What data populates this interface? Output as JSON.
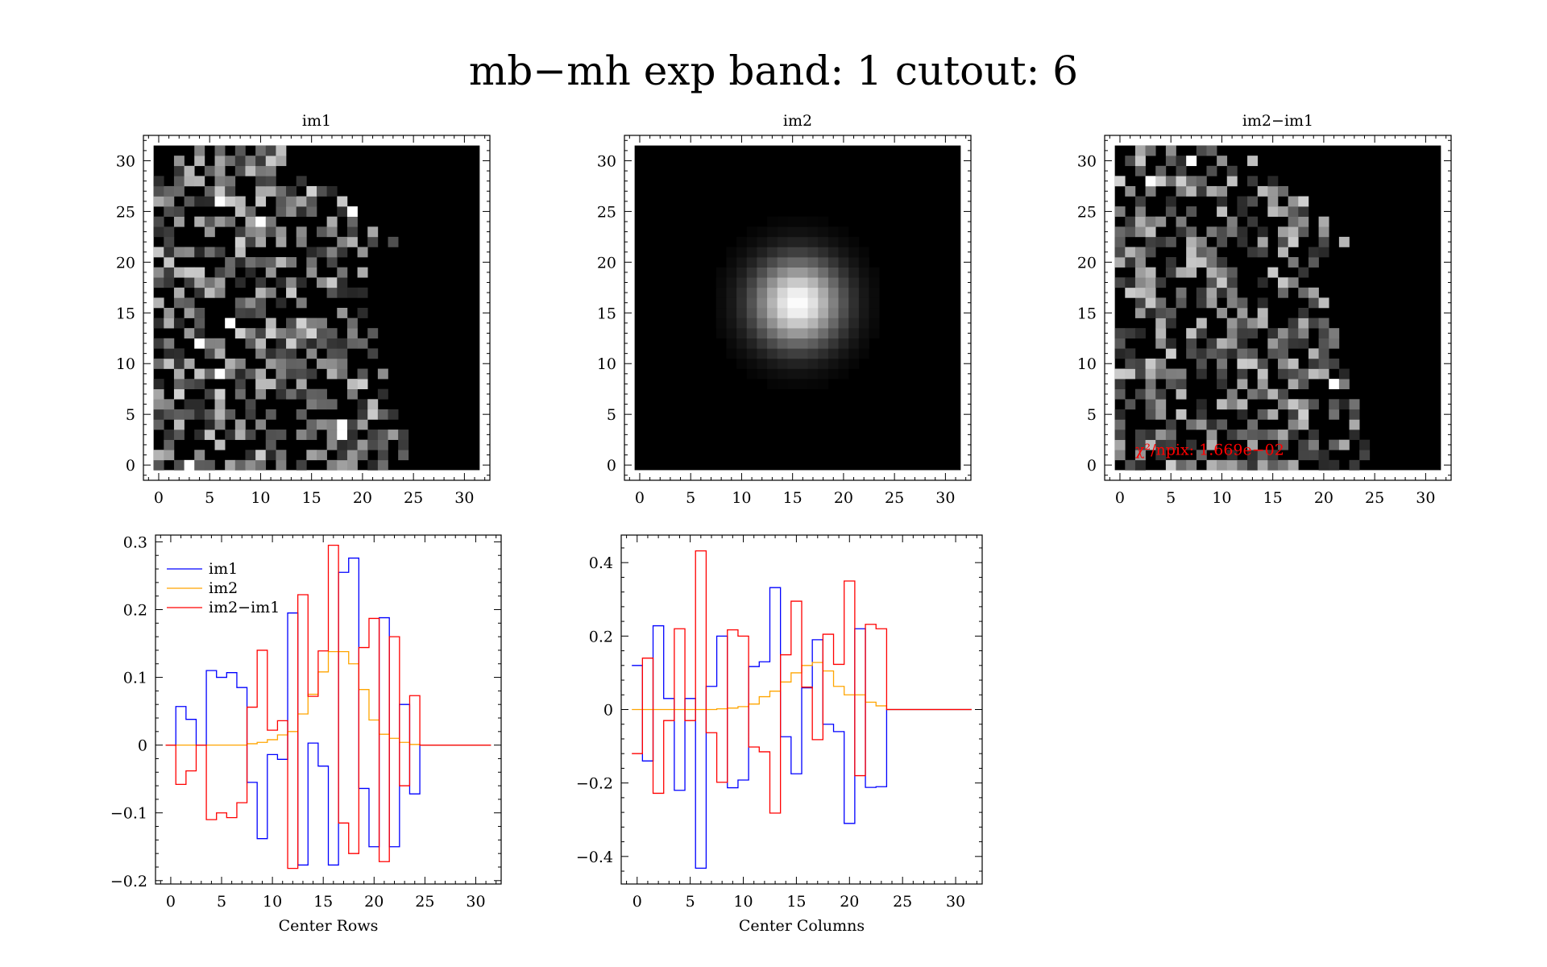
{
  "figure": {
    "title": "mb−mh exp band: 1 cutout: 6"
  },
  "chart_data": [
    {
      "type": "heatmap",
      "title": "im1",
      "xlim": [
        -1.5,
        32.5
      ],
      "ylim": [
        -1.5,
        32.5
      ],
      "xticks": [
        0,
        5,
        10,
        15,
        20,
        25,
        30
      ],
      "yticks": [
        0,
        5,
        10,
        15,
        20,
        25,
        30
      ],
      "grid_size": 32,
      "colormap": "grayscale",
      "note_content": "noisy pixels filling the lower-left region, zero elsewhere"
    },
    {
      "type": "heatmap",
      "title": "im2",
      "xlim": [
        -1.5,
        32.5
      ],
      "ylim": [
        -1.5,
        32.5
      ],
      "xticks": [
        0,
        5,
        10,
        15,
        20,
        25,
        30
      ],
      "yticks": [
        0,
        5,
        10,
        15,
        20,
        25,
        30
      ],
      "grid_size": 32,
      "colormap": "grayscale",
      "gaussian": {
        "center_x": 15.5,
        "center_y": 16,
        "sigma": 3
      }
    },
    {
      "type": "heatmap",
      "title": "im2−im1",
      "xlim": [
        -1.5,
        32.5
      ],
      "ylim": [
        -1.5,
        32.5
      ],
      "xticks": [
        0,
        5,
        10,
        15,
        20,
        25,
        30
      ],
      "yticks": [
        0,
        5,
        10,
        15,
        20,
        25,
        30
      ],
      "grid_size": 32,
      "colormap": "grayscale",
      "annotation": {
        "text": "χ²/npix: 1.669e−02",
        "color": "#ff0000",
        "x": 1.5,
        "y": 1
      }
    },
    {
      "type": "line",
      "step": true,
      "xlabel": "Center Rows",
      "xlim": [
        -1.5,
        32.5
      ],
      "ylim": [
        -0.205,
        0.31
      ],
      "xticks": [
        0,
        5,
        10,
        15,
        20,
        25,
        30
      ],
      "yticks": [
        -0.2,
        -0.1,
        0,
        0.1,
        0.2,
        0.3
      ],
      "ytick_labels": [
        "−0.2",
        "−0.1",
        "0",
        "0.1",
        "0.2",
        "0.3"
      ],
      "legend": "top-left",
      "x": [
        0,
        1,
        2,
        3,
        4,
        5,
        6,
        7,
        8,
        9,
        10,
        11,
        12,
        13,
        14,
        15,
        16,
        17,
        18,
        19,
        20,
        21,
        22,
        23,
        24,
        25,
        26,
        27,
        28,
        29,
        30,
        31
      ],
      "series": [
        {
          "name": "im1",
          "color": "#0000ff",
          "values": [
            0.0,
            0.057,
            0.038,
            0.0,
            0.11,
            0.1,
            0.107,
            0.085,
            -0.055,
            -0.138,
            -0.014,
            -0.021,
            0.195,
            -0.177,
            0.003,
            -0.031,
            -0.177,
            0.255,
            0.276,
            -0.064,
            -0.15,
            0.188,
            -0.15,
            0.06,
            -0.072,
            0,
            0,
            0,
            0,
            0,
            0,
            0
          ]
        },
        {
          "name": "im2",
          "color": "#ffa500",
          "values": [
            0,
            0,
            0,
            0,
            0,
            0,
            0,
            0,
            0.002,
            0.004,
            0.008,
            0.015,
            0.02,
            0.046,
            0.075,
            0.108,
            0.138,
            0.138,
            0.12,
            0.082,
            0.037,
            0.016,
            0.01,
            0.004,
            0.001,
            0,
            0,
            0,
            0,
            0,
            0,
            0
          ]
        },
        {
          "name": "im2−im1",
          "color": "#ff0000",
          "values": [
            0.0,
            -0.058,
            -0.038,
            0.0,
            -0.11,
            -0.1,
            -0.107,
            -0.085,
            0.056,
            0.14,
            0.022,
            0.036,
            -0.182,
            0.222,
            0.072,
            0.139,
            0.295,
            -0.115,
            -0.16,
            0.144,
            0.187,
            -0.172,
            0.16,
            -0.06,
            0.073,
            0,
            0,
            0,
            0,
            0,
            0,
            0
          ]
        }
      ]
    },
    {
      "type": "line",
      "step": true,
      "xlabel": "Center Columns",
      "xlim": [
        -1.5,
        32.5
      ],
      "ylim": [
        -0.475,
        0.475
      ],
      "xticks": [
        0,
        5,
        10,
        15,
        20,
        25,
        30
      ],
      "yticks": [
        -0.4,
        -0.2,
        0,
        0.2,
        0.4
      ],
      "ytick_labels": [
        "−0.4",
        "−0.2",
        "0",
        "0.2",
        "0.4"
      ],
      "x": [
        0,
        1,
        2,
        3,
        4,
        5,
        6,
        7,
        8,
        9,
        10,
        11,
        12,
        13,
        14,
        15,
        16,
        17,
        18,
        19,
        20,
        21,
        22,
        23,
        24,
        25,
        26,
        27,
        28,
        29,
        30,
        31
      ],
      "series": [
        {
          "name": "im1",
          "color": "#0000ff",
          "values": [
            0.12,
            -0.14,
            0.228,
            0.03,
            -0.22,
            0.03,
            -0.432,
            0.063,
            0.2,
            -0.213,
            -0.192,
            0.117,
            0.13,
            0.332,
            -0.074,
            -0.175,
            0.059,
            0.19,
            -0.04,
            -0.06,
            -0.31,
            0.22,
            -0.212,
            -0.21,
            0,
            0,
            0,
            0,
            0,
            0,
            0,
            0
          ]
        },
        {
          "name": "im2",
          "color": "#ffa500",
          "values": [
            0,
            0,
            0,
            0,
            0,
            0,
            0,
            0,
            0.002,
            0.004,
            0.008,
            0.015,
            0.035,
            0.05,
            0.075,
            0.1,
            0.12,
            0.128,
            0.105,
            0.063,
            0.04,
            0.04,
            0.02,
            0.01,
            0,
            0,
            0,
            0,
            0,
            0,
            0,
            0
          ]
        },
        {
          "name": "im2−im1",
          "color": "#ff0000",
          "values": [
            -0.12,
            0.14,
            -0.228,
            -0.03,
            0.22,
            -0.03,
            0.432,
            -0.063,
            -0.198,
            0.217,
            0.2,
            -0.102,
            -0.115,
            -0.282,
            0.149,
            0.295,
            0.061,
            -0.082,
            0.205,
            0.123,
            0.35,
            -0.18,
            0.232,
            0.22,
            0,
            0,
            0,
            0,
            0,
            0,
            0,
            0
          ]
        }
      ]
    }
  ]
}
